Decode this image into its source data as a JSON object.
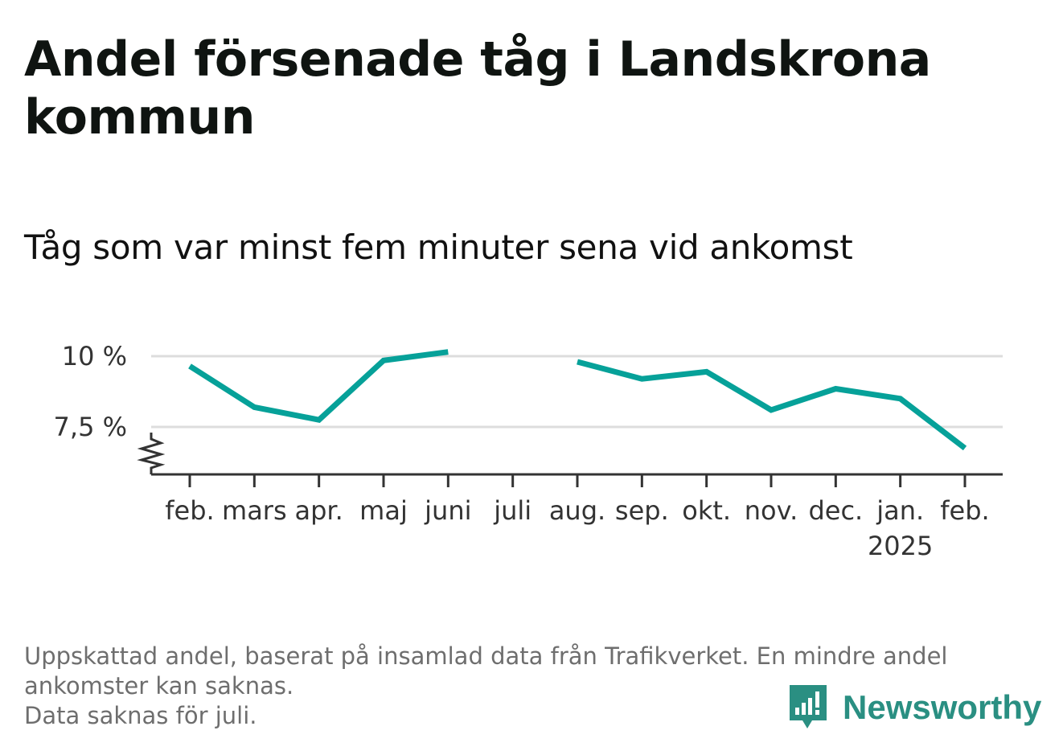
{
  "title": "Andel försenade tåg i Landskrona kommun",
  "subtitle": "Tåg som var minst fem minuter sena vid ankomst",
  "footnote": {
    "line1": "Uppskattad andel, baserat på insamlad data från Trafikverket. En mindre andel",
    "line2": "ankomster kan saknas.",
    "line3": "Data saknas för juli."
  },
  "brand": {
    "name": "Newsworthy",
    "icon": "newsworthy-logo-icon",
    "color": "#2a8f82"
  },
  "chart_data": {
    "type": "line",
    "categories": [
      "feb.",
      "mars",
      "apr.",
      "maj",
      "juni",
      "juli",
      "aug.",
      "sep.",
      "okt.",
      "nov.",
      "dec.",
      "jan.",
      "feb."
    ],
    "year_label": "2025",
    "year_label_under": "jan.",
    "series": [
      {
        "values": [
          9.65,
          8.2,
          7.75,
          9.85,
          10.15,
          null,
          9.8,
          9.2,
          9.45,
          8.1,
          8.85,
          8.5,
          6.75
        ],
        "color": "#06a199"
      }
    ],
    "y_ticks": [
      {
        "value": 7.5,
        "label": "7,5 %"
      },
      {
        "value": 10,
        "label": "10 %"
      }
    ],
    "ylim": [
      5.8,
      10.5
    ],
    "y_axis_break": true,
    "grid": true,
    "missing": [
      "juli"
    ]
  }
}
